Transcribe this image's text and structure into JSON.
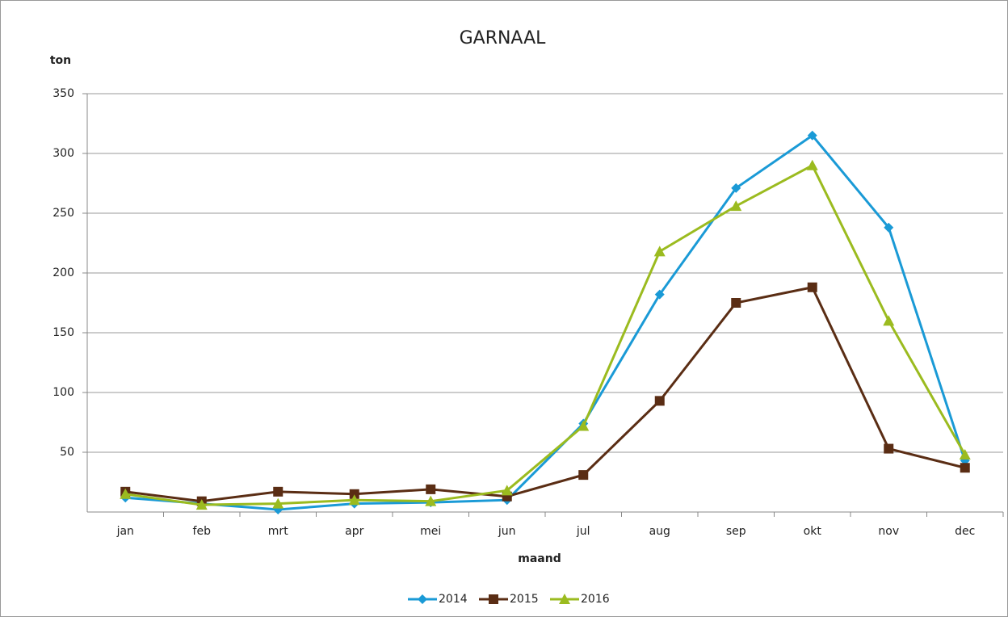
{
  "chart_data": {
    "type": "line",
    "title": "GARNAAL",
    "y_label": "ton",
    "x_label": "maand",
    "categories": [
      "jan",
      "feb",
      "mrt",
      "apr",
      "mei",
      "jun",
      "jul",
      "aug",
      "sep",
      "okt",
      "nov",
      "dec"
    ],
    "series": [
      {
        "name": "2014",
        "color": "#1a9ad6",
        "marker": "diamond",
        "values": [
          12,
          7,
          2,
          7,
          8,
          10,
          74,
          182,
          271,
          315,
          238,
          43
        ]
      },
      {
        "name": "2015",
        "color": "#5a2d14",
        "marker": "square",
        "values": [
          17,
          9,
          17,
          15,
          19,
          13,
          31,
          93,
          175,
          188,
          53,
          37
        ]
      },
      {
        "name": "2016",
        "color": "#9bbb1f",
        "marker": "triangle",
        "values": [
          15,
          6,
          7,
          10,
          9,
          18,
          72,
          218,
          256,
          290,
          160,
          48
        ]
      }
    ],
    "ylim": [
      0,
      350
    ],
    "yticks": [
      50,
      100,
      150,
      200,
      250,
      300,
      350
    ],
    "grid": true,
    "legend": "bottom"
  }
}
